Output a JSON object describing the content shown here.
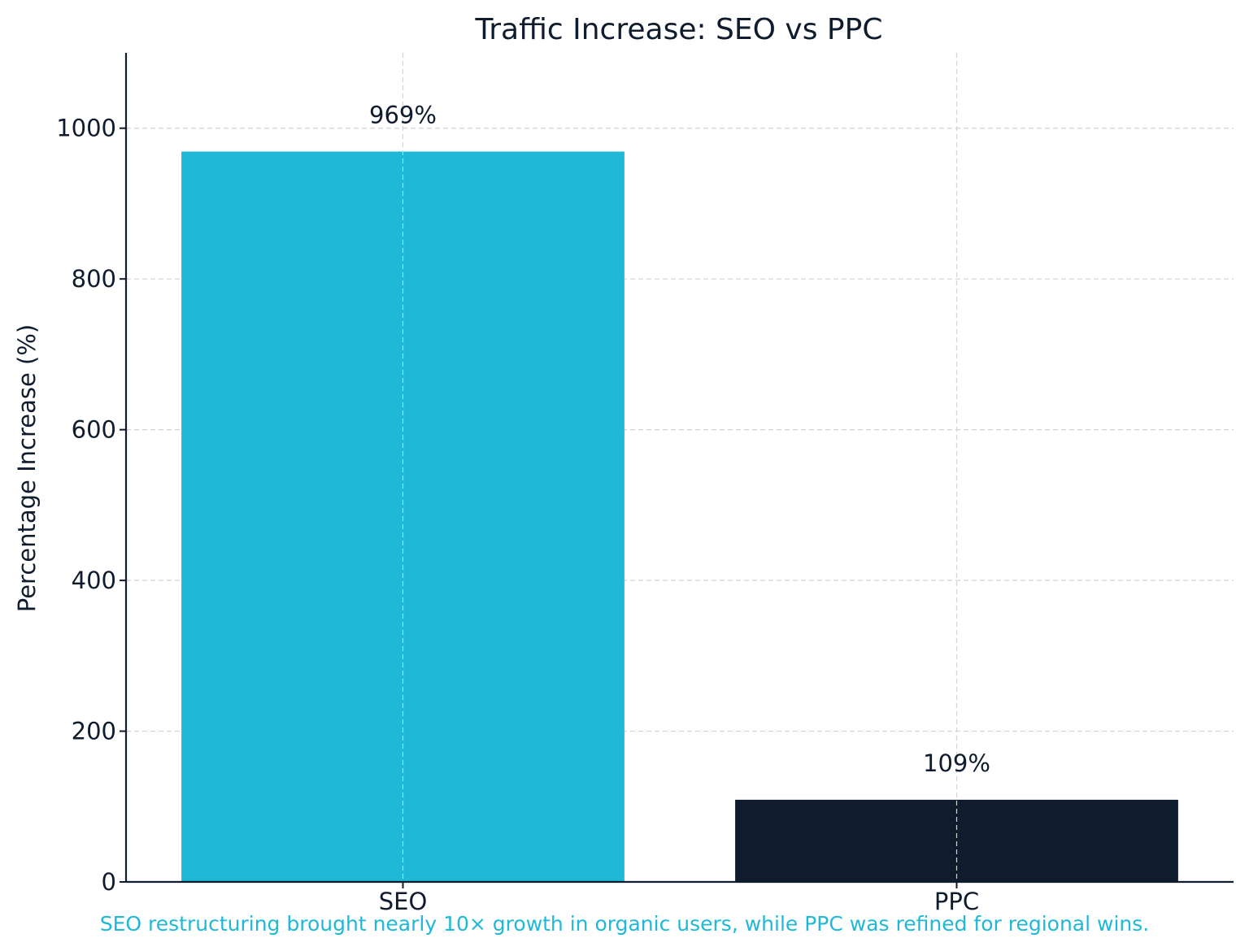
{
  "chart_data": {
    "type": "bar",
    "title": "Traffic Increase: SEO vs PPC",
    "xlabel": "",
    "ylabel": "Percentage Increase (%)",
    "categories": [
      "SEO",
      "PPC"
    ],
    "values": [
      969,
      109
    ],
    "value_labels": [
      "969%",
      "109%"
    ],
    "colors": [
      "#1fb8d6",
      "#0f1c2e"
    ],
    "ylim": [
      0,
      1100
    ],
    "yticks": [
      0,
      200,
      400,
      600,
      800,
      1000
    ],
    "grid": true,
    "caption": "SEO restructuring brought nearly 10× growth in organic users, while PPC was refined for regional wins."
  }
}
